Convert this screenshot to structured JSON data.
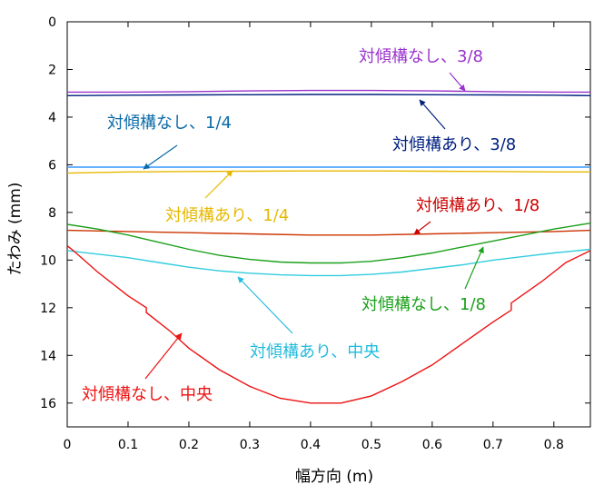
{
  "chart_data": {
    "type": "line",
    "title": "",
    "xlabel": "幅方向 (m)",
    "ylabel": "たわみ (mm)",
    "xlim": [
      0,
      0.86
    ],
    "ylim": [
      0,
      17
    ],
    "y_inverted": true,
    "grid": false,
    "xticks": [
      0,
      0.1,
      0.2,
      0.3,
      0.4,
      0.5,
      0.6,
      0.7,
      0.8
    ],
    "yticks": [
      0,
      2,
      4,
      6,
      8,
      10,
      12,
      14,
      16
    ],
    "xtick_labels": [
      "0",
      "0.1",
      "0.2",
      "0.3",
      "0.4",
      "0.5",
      "0.6",
      "0.7",
      "0.8"
    ],
    "ytick_labels": [
      "0",
      "2",
      "4",
      "6",
      "8",
      "10",
      "12",
      "14",
      "16"
    ],
    "series": [
      {
        "name": "対傾構なし、3/8",
        "color": "#9933cc",
        "x": [
          0,
          0.1,
          0.2,
          0.3,
          0.4,
          0.5,
          0.6,
          0.7,
          0.8,
          0.86
        ],
        "y": [
          2.95,
          2.95,
          2.93,
          2.9,
          2.88,
          2.88,
          2.9,
          2.93,
          2.95,
          2.95
        ]
      },
      {
        "name": "対傾構あり、3/8",
        "color": "#002080",
        "x": [
          0,
          0.1,
          0.2,
          0.3,
          0.4,
          0.5,
          0.6,
          0.7,
          0.8,
          0.86
        ],
        "y": [
          3.1,
          3.08,
          3.07,
          3.06,
          3.05,
          3.05,
          3.06,
          3.07,
          3.08,
          3.1
        ]
      },
      {
        "name": "対傾構なし、1/4",
        "color": "#3399ff",
        "x": [
          0,
          0.1,
          0.2,
          0.3,
          0.4,
          0.5,
          0.6,
          0.7,
          0.8,
          0.86
        ],
        "y": [
          6.1,
          6.1,
          6.1,
          6.1,
          6.1,
          6.1,
          6.1,
          6.1,
          6.1,
          6.1
        ]
      },
      {
        "name": "対傾構あり、1/4",
        "color": "#e6b800",
        "x": [
          0,
          0.1,
          0.2,
          0.3,
          0.4,
          0.5,
          0.6,
          0.7,
          0.8,
          0.86
        ],
        "y": [
          6.35,
          6.3,
          6.28,
          6.27,
          6.26,
          6.26,
          6.27,
          6.28,
          6.3,
          6.3
        ]
      },
      {
        "name": "対傾構あり、1/8",
        "color": "#cc3300",
        "x": [
          0,
          0.1,
          0.2,
          0.3,
          0.4,
          0.5,
          0.6,
          0.7,
          0.8,
          0.86
        ],
        "y": [
          8.75,
          8.8,
          8.85,
          8.9,
          8.95,
          8.95,
          8.9,
          8.85,
          8.8,
          8.75
        ]
      },
      {
        "name": "対傾構なし、1/8",
        "color": "#1aa01a",
        "x": [
          0,
          0.05,
          0.1,
          0.15,
          0.2,
          0.25,
          0.3,
          0.35,
          0.4,
          0.45,
          0.5,
          0.55,
          0.6,
          0.65,
          0.7,
          0.75,
          0.8,
          0.86
        ],
        "y": [
          8.5,
          8.7,
          8.95,
          9.25,
          9.55,
          9.8,
          9.97,
          10.08,
          10.12,
          10.12,
          10.05,
          9.9,
          9.7,
          9.45,
          9.2,
          8.95,
          8.7,
          8.45
        ]
      },
      {
        "name": "対傾構あり、中央",
        "color": "#33ccdd",
        "x": [
          0,
          0.05,
          0.1,
          0.15,
          0.2,
          0.25,
          0.3,
          0.35,
          0.4,
          0.45,
          0.5,
          0.55,
          0.6,
          0.65,
          0.7,
          0.75,
          0.8,
          0.86
        ],
        "y": [
          9.6,
          9.75,
          9.9,
          10.1,
          10.3,
          10.45,
          10.55,
          10.62,
          10.65,
          10.65,
          10.6,
          10.5,
          10.35,
          10.2,
          10.0,
          9.85,
          9.7,
          9.55
        ]
      },
      {
        "name": "対傾構なし、中央",
        "color": "#ee1111",
        "x": [
          0,
          0.01,
          0.05,
          0.1,
          0.13,
          0.13,
          0.17,
          0.2,
          0.25,
          0.3,
          0.35,
          0.4,
          0.45,
          0.5,
          0.55,
          0.6,
          0.65,
          0.7,
          0.73,
          0.73,
          0.78,
          0.82,
          0.86
        ],
        "y": [
          9.4,
          9.6,
          10.5,
          11.5,
          12.0,
          12.2,
          13.0,
          13.7,
          14.6,
          15.3,
          15.8,
          16.0,
          16.0,
          15.7,
          15.1,
          14.4,
          13.5,
          12.6,
          12.1,
          11.8,
          10.9,
          10.1,
          9.6
        ]
      }
    ],
    "annotations": [
      {
        "text": "対傾構なし、3/8",
        "color": "#9933cc"
      },
      {
        "text": "対傾構あり、3/8",
        "color": "#002080"
      },
      {
        "text": "対傾構なし、1/4",
        "color": "#0a6aa8"
      },
      {
        "text": "対傾構あり、1/4",
        "color": "#e6b800"
      },
      {
        "text": "対傾構あり、1/8",
        "color": "#cc0000"
      },
      {
        "text": "対傾構なし、1/8",
        "color": "#1aa01a"
      },
      {
        "text": "対傾構あり、中央",
        "color": "#22bbdd"
      },
      {
        "text": "対傾構なし、中央",
        "color": "#ee1111"
      }
    ]
  }
}
